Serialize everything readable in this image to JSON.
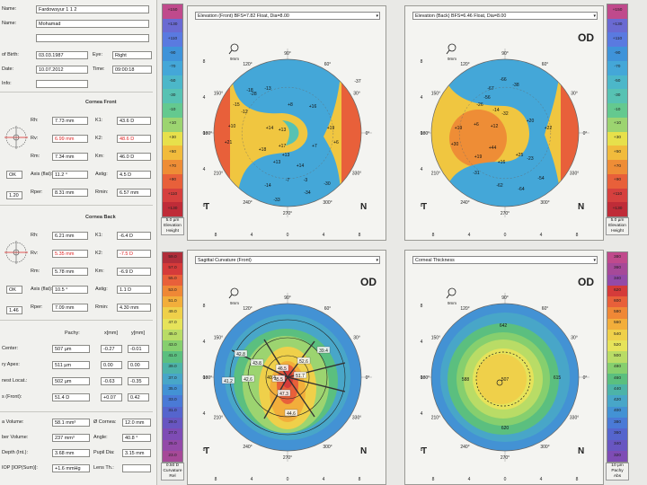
{
  "patient": {
    "rows": [
      {
        "label": "Name:",
        "value": "Fardowsyur 1 1 2"
      },
      {
        "label": "Name:",
        "value": "Mohamad"
      },
      {
        "label": "",
        "value": ""
      },
      {
        "label": "of Birth:",
        "value": "03.03.1987"
      },
      {
        "label": "Date:",
        "value": "10.07.2012"
      },
      {
        "label": "Info:",
        "value": ""
      }
    ],
    "eye_label": "Eye:",
    "eye_value": "Right",
    "time_label": "Time:",
    "time_value": "09:00:18"
  },
  "cornea_front": {
    "title": "Cornea Front",
    "rows": [
      {
        "l1": "Rh:",
        "v1": "7.73 mm",
        "l2": "K1:",
        "v2": "43.6 D"
      },
      {
        "l1": "Rv:",
        "v1": "6.99 mm",
        "l2": "K2:",
        "v2": "48.6 D"
      },
      {
        "l1": "Rm:",
        "v1": "7.34 mm",
        "l2": "Km:",
        "v2": "46.0 D"
      },
      {
        "l1": "Axis (flat):",
        "v1": "11.2 °",
        "l2": "Astig:",
        "v2": "4.5 D"
      },
      {
        "l1": "Rper:",
        "v1": "8.31 mm",
        "l2": "Rmin:",
        "v2": "6.57 mm"
      }
    ],
    "qs": "OK",
    "q2": "1.20"
  },
  "cornea_back": {
    "title": "Cornea Back",
    "rows": [
      {
        "l1": "Rh:",
        "v1": "6.21 mm",
        "l2": "K1:",
        "v2": "-6.4 D"
      },
      {
        "l1": "Rv:",
        "v1": "5.35 mm",
        "l2": "K2:",
        "v2": "-7.5 D"
      },
      {
        "l1": "Rm:",
        "v1": "5.78 mm",
        "l2": "Km:",
        "v2": "-6.9 D"
      },
      {
        "l1": "Axis (flat):",
        "v1": "10.5 °",
        "l2": "Astig:",
        "v2": "1.1 D"
      },
      {
        "l1": "Rper:",
        "v1": "7.09 mm",
        "l2": "Rmin:",
        "v2": "4.30 mm"
      }
    ],
    "qs": "OK",
    "q2": "1.46"
  },
  "pachy": {
    "headers": [
      "Pachy:",
      "x[mm]",
      "y[mm]"
    ],
    "rows": [
      {
        "label": "Center:",
        "v": "507 µm",
        "x": "-0.27",
        "y": "-0.01"
      },
      {
        "label": "ry Apex:",
        "v": "511 µm",
        "x": "0.00",
        "y": "0.00"
      },
      {
        "label": "nest Locat.:",
        "v": "502 µm",
        "x": "-0.63",
        "y": "-0.35"
      },
      {
        "label": "s (Front):",
        "v": "51.4 D",
        "x": "+0.07",
        "y": "0.42"
      }
    ]
  },
  "volume": {
    "rows": [
      {
        "l1": "a Volume:",
        "v1": "58.1 mm³",
        "l2": "Ø Cornea:",
        "v2": "12.0 mm"
      },
      {
        "l1": "ber Volume:",
        "v1": "237 mm³",
        "l2": "Angle:",
        "v2": "40.8 °"
      },
      {
        "l1": "Depth (Int.):",
        "v1": "3.68 mm",
        "l2": "Pupil Dia:",
        "v2": "3.15 mm"
      },
      {
        "l1": "IOP [IOP(Sum)]:",
        "v1": "+1.6 mmHg",
        "l2": "Lens Th.:",
        "v2": ""
      }
    ]
  },
  "panels": [
    {
      "title": "Elevation (Front) BFS=7.82 Float, Dia=8.00",
      "od": "",
      "t": "T",
      "n": "N",
      "zoom": "9mm",
      "values": [
        "-37",
        "-18",
        "-13",
        "-15",
        "-12",
        "+8",
        "+10",
        "+14",
        "+13",
        "+19",
        "+21",
        "+18",
        "+17",
        "+7",
        "+6",
        "+13",
        "+13",
        "+14",
        "-7",
        "-3",
        "-14",
        "-33",
        "-34",
        "-30",
        "-28",
        "+16"
      ]
    },
    {
      "title": "Elevation (Back) BFS=6.46 Float, Dia=8.00",
      "od": "OD",
      "t": "T",
      "n": "N",
      "zoom": "9mm",
      "values": [
        "-66",
        "-67",
        "-38",
        "-56",
        "-26",
        "-32",
        "+19",
        "+6",
        "+12",
        "+22",
        "+30",
        "+44",
        "+19",
        "+25",
        "+16",
        "-23",
        "-31",
        "-62",
        "-64",
        "-54",
        "+20",
        "-14"
      ]
    },
    {
      "title": "Sagittal Curvature (Front)",
      "od": "OD",
      "t": "T",
      "n": "N",
      "zoom": "9mm",
      "values": [
        "42.8",
        "43.8",
        "46.5",
        "52.6",
        "39.4",
        "41.2",
        "42.6",
        "45.5",
        "51.7",
        "40.4",
        "47.3",
        "44.6"
      ]
    },
    {
      "title": "Corneal Thickness",
      "od": "OD",
      "t": "T",
      "n": "N",
      "zoom": "9mm",
      "values": [
        "642",
        "588",
        "507",
        "615",
        "620"
      ]
    }
  ],
  "angles": [
    "90°",
    "60°",
    "30°",
    "0°",
    "330°",
    "300°",
    "270°",
    "240°",
    "210°",
    "180°",
    "150°",
    "120°"
  ],
  "ticks": [
    "8",
    "4",
    "0",
    "4",
    "8"
  ],
  "scales": [
    {
      "values": [
        "+150",
        "+130",
        "+110",
        "-90",
        "-70",
        "-50",
        "-30",
        "-10",
        "+10",
        "+30",
        "+50",
        "+70",
        "+90",
        "+110",
        "+130"
      ],
      "foot": [
        "5.0 µm",
        "Elevation",
        "Height"
      ]
    },
    {
      "values": [
        "+150",
        "+130",
        "+110",
        "-90",
        "-70",
        "-50",
        "-30",
        "-10",
        "+10",
        "+30",
        "+50",
        "+70",
        "+90",
        "+110",
        "+130"
      ],
      "foot": [
        "5.0 µm",
        "Elevation",
        "Height"
      ]
    },
    {
      "values": [
        "59.0",
        "57.0",
        "55.0",
        "53.0",
        "51.0",
        "49.0",
        "47.0",
        "45.0",
        "43.0",
        "41.0",
        "39.0",
        "37.0",
        "35.0",
        "33.0",
        "31.0",
        "29.0",
        "27.0",
        "25.0",
        "23.0"
      ],
      "foot": [
        "0.50 D",
        "Curvature",
        "Rel"
      ]
    },
    {
      "values": [
        "380",
        "360",
        "340",
        "620",
        "600",
        "580",
        "560",
        "540",
        "520",
        "500",
        "480",
        "460",
        "440",
        "420",
        "400",
        "380",
        "360",
        "340",
        "320"
      ],
      "foot": [
        "10 µm",
        "Pachy",
        "Abs"
      ]
    }
  ],
  "colors": {
    "elev_scale": [
      "#c04a8c",
      "#6a6ad2",
      "#5a7ae0",
      "#3f93d9",
      "#44a7d8",
      "#4cb7c9",
      "#57c2b3",
      "#64c98f",
      "#9cd470",
      "#e7e04b",
      "#f1bb3c",
      "#ee8d36",
      "#e8603a",
      "#d6403e",
      "#bf2c38"
    ],
    "curv_scale": [
      "#b02e3a",
      "#d53b3a",
      "#e8603a",
      "#ef8836",
      "#f2ae3b",
      "#efd04a",
      "#e6e35a",
      "#b9dc66",
      "#86cf6e",
      "#5bbf7f",
      "#4db3a8",
      "#48a6c8",
      "#4392d4",
      "#4a7ad6",
      "#5565cd",
      "#6856c1",
      "#7e4cb5",
      "#934aa8",
      "#a64998"
    ],
    "pachy_scale": [
      "#c04a8c",
      "#a64998",
      "#934aa8",
      "#d53b3a",
      "#e8603a",
      "#ef8836",
      "#f2ae3b",
      "#efd04a",
      "#e6e35a",
      "#b9dc66",
      "#86cf6e",
      "#5bbf7f",
      "#4db3a8",
      "#48a6c8",
      "#4392d4",
      "#4a7ad6",
      "#5565cd",
      "#6856c1",
      "#7e4cb5"
    ]
  }
}
